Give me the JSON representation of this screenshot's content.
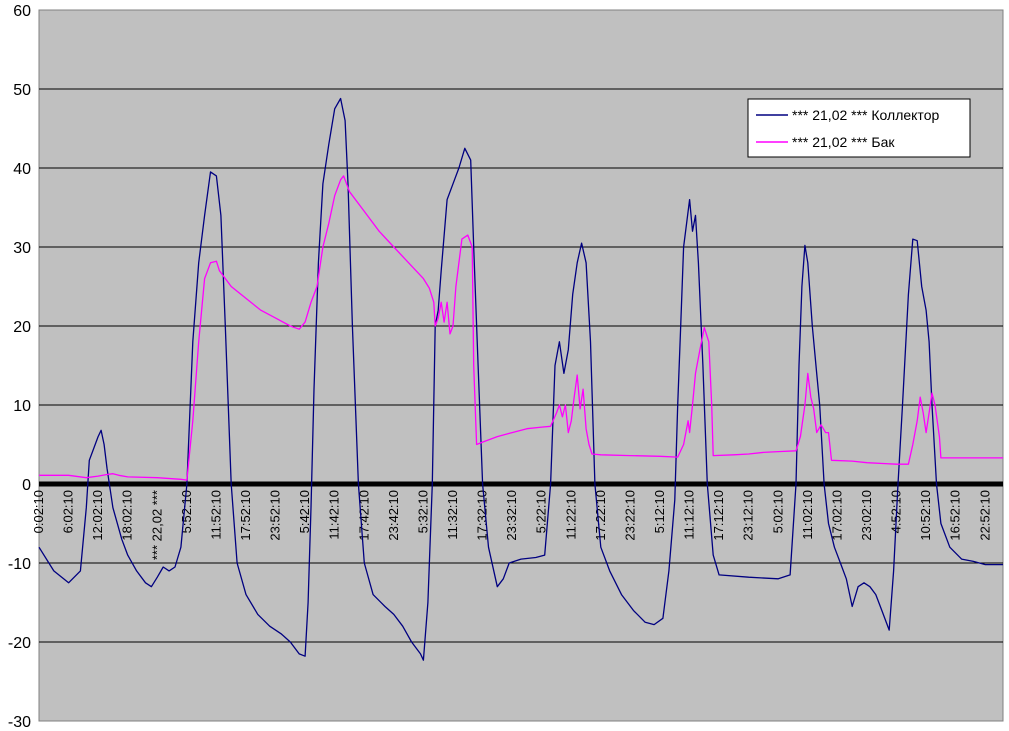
{
  "chart_data": {
    "type": "line",
    "title": "",
    "xlabel": "",
    "ylabel": "",
    "ylim": [
      -30,
      60
    ],
    "yticks": [
      60,
      50,
      40,
      30,
      20,
      10,
      0,
      -10,
      -20,
      -30
    ],
    "grid": "horizontal",
    "legend_position": "top-right",
    "background_color": "#c0c0c0",
    "zero_line_color": "#000000",
    "x_labels": [
      "0:02:10",
      "6:02:10",
      "12:02:10",
      "18:02:10",
      "*** 22,02 ***",
      "5:52:10",
      "11:52:10",
      "17:52:10",
      "23:52:10",
      "5:42:10",
      "11:42:10",
      "17:42:10",
      "23:42:10",
      "5:32:10",
      "11:32:10",
      "17:32:10",
      "23:32:10",
      "5:22:10",
      "11:22:10",
      "17:22:10",
      "23:22:10",
      "5:12:10",
      "11:12:10",
      "17:12:10",
      "23:12:10",
      "5:02:10",
      "11:02:10",
      "17:02:10",
      "23:02:10",
      "4:52:10",
      "10:52:10",
      "16:52:10",
      "22:52:10"
    ],
    "series": [
      {
        "name": "*** 21,02 *** Коллектор",
        "color": "#000080",
        "points": [
          [
            0,
            -8
          ],
          [
            0.5,
            -11
          ],
          [
            1,
            -12.5
          ],
          [
            1.4,
            -11
          ],
          [
            1.6,
            -3
          ],
          [
            1.7,
            3
          ],
          [
            1.85,
            4.5
          ],
          [
            2,
            6
          ],
          [
            2.1,
            6.8
          ],
          [
            2.2,
            5
          ],
          [
            2.3,
            2
          ],
          [
            2.5,
            -3
          ],
          [
            2.8,
            -7
          ],
          [
            3,
            -9
          ],
          [
            3.3,
            -11
          ],
          [
            3.6,
            -12.5
          ],
          [
            3.8,
            -13
          ],
          [
            4,
            -11.8
          ],
          [
            4.2,
            -10.5
          ],
          [
            4.4,
            -11
          ],
          [
            4.6,
            -10.5
          ],
          [
            4.8,
            -8
          ],
          [
            5,
            0
          ],
          [
            5.2,
            18
          ],
          [
            5.4,
            28
          ],
          [
            5.6,
            34
          ],
          [
            5.8,
            39.5
          ],
          [
            6,
            39
          ],
          [
            6.15,
            34
          ],
          [
            6.3,
            20
          ],
          [
            6.5,
            0
          ],
          [
            6.7,
            -10
          ],
          [
            7,
            -14
          ],
          [
            7.4,
            -16.5
          ],
          [
            7.8,
            -18
          ],
          [
            8.2,
            -19
          ],
          [
            8.5,
            -20
          ],
          [
            8.8,
            -21.5
          ],
          [
            9,
            -21.8
          ],
          [
            9.1,
            -15
          ],
          [
            9.2,
            -3
          ],
          [
            9.3,
            12
          ],
          [
            9.45,
            28
          ],
          [
            9.6,
            38
          ],
          [
            9.8,
            43
          ],
          [
            10,
            47.5
          ],
          [
            10.2,
            48.8
          ],
          [
            10.35,
            46
          ],
          [
            10.45,
            38
          ],
          [
            10.6,
            20
          ],
          [
            10.8,
            0
          ],
          [
            11,
            -10
          ],
          [
            11.3,
            -14
          ],
          [
            11.7,
            -15.5
          ],
          [
            12,
            -16.5
          ],
          [
            12.3,
            -18
          ],
          [
            12.6,
            -20
          ],
          [
            12.9,
            -21.5
          ],
          [
            13,
            -22.3
          ],
          [
            13.15,
            -15
          ],
          [
            13.3,
            0
          ],
          [
            13.4,
            20
          ],
          [
            13.5,
            22
          ],
          [
            13.6,
            27
          ],
          [
            13.8,
            36
          ],
          [
            14,
            38
          ],
          [
            14.2,
            40
          ],
          [
            14.4,
            42.5
          ],
          [
            14.6,
            41
          ],
          [
            14.7,
            30
          ],
          [
            14.85,
            15
          ],
          [
            15,
            0
          ],
          [
            15.2,
            -8
          ],
          [
            15.5,
            -13
          ],
          [
            15.7,
            -12
          ],
          [
            15.9,
            -10
          ],
          [
            16.3,
            -9.5
          ],
          [
            16.8,
            -9.3
          ],
          [
            17.1,
            -9
          ],
          [
            17.3,
            0
          ],
          [
            17.45,
            15
          ],
          [
            17.6,
            18
          ],
          [
            17.75,
            14
          ],
          [
            17.9,
            17
          ],
          [
            18.05,
            24
          ],
          [
            18.2,
            28
          ],
          [
            18.35,
            30.5
          ],
          [
            18.5,
            28
          ],
          [
            18.65,
            18
          ],
          [
            18.8,
            0
          ],
          [
            19,
            -8
          ],
          [
            19.3,
            -11
          ],
          [
            19.7,
            -14
          ],
          [
            20.1,
            -16
          ],
          [
            20.5,
            -17.5
          ],
          [
            20.8,
            -17.8
          ],
          [
            21.1,
            -17
          ],
          [
            21.3,
            -11
          ],
          [
            21.5,
            -2
          ],
          [
            21.6,
            10
          ],
          [
            21.7,
            20
          ],
          [
            21.8,
            30
          ],
          [
            21.9,
            33
          ],
          [
            22,
            36
          ],
          [
            22.1,
            32
          ],
          [
            22.2,
            34
          ],
          [
            22.3,
            28
          ],
          [
            22.45,
            15
          ],
          [
            22.6,
            0
          ],
          [
            22.8,
            -9
          ],
          [
            23,
            -11.5
          ],
          [
            24,
            -11.8
          ],
          [
            25,
            -12
          ],
          [
            25.4,
            -11.5
          ],
          [
            25.6,
            0
          ],
          [
            25.7,
            15
          ],
          [
            25.8,
            25
          ],
          [
            25.9,
            30.2
          ],
          [
            26,
            28
          ],
          [
            26.15,
            20
          ],
          [
            26.3,
            14
          ],
          [
            26.4,
            10
          ],
          [
            26.55,
            0
          ],
          [
            26.7,
            -5
          ],
          [
            26.9,
            -8
          ],
          [
            27.1,
            -10
          ],
          [
            27.3,
            -12
          ],
          [
            27.5,
            -15.5
          ],
          [
            27.7,
            -13
          ],
          [
            27.9,
            -12.5
          ],
          [
            28.1,
            -13
          ],
          [
            28.3,
            -14
          ],
          [
            28.5,
            -16
          ],
          [
            28.75,
            -18.5
          ],
          [
            28.9,
            -11
          ],
          [
            29.05,
            0
          ],
          [
            29.2,
            10
          ],
          [
            29.4,
            24
          ],
          [
            29.55,
            31
          ],
          [
            29.7,
            30.8
          ],
          [
            29.85,
            25
          ],
          [
            30,
            22
          ],
          [
            30.1,
            18
          ],
          [
            30.2,
            10
          ],
          [
            30.35,
            0
          ],
          [
            30.5,
            -5
          ],
          [
            30.8,
            -8
          ],
          [
            31.2,
            -9.5
          ],
          [
            31.6,
            -9.8
          ],
          [
            32,
            -10.2
          ],
          [
            32.6,
            -10.2
          ]
        ]
      },
      {
        "name": "*** 21,02 *** Бак",
        "color": "#ff00ff",
        "points": [
          [
            0,
            1.1
          ],
          [
            1,
            1.1
          ],
          [
            1.6,
            0.8
          ],
          [
            2,
            1
          ],
          [
            2.3,
            1.2
          ],
          [
            2.5,
            1.3
          ],
          [
            2.7,
            1.1
          ],
          [
            3,
            0.9
          ],
          [
            4,
            0.8
          ],
          [
            4.8,
            0.6
          ],
          [
            5,
            0.5
          ],
          [
            5.2,
            8
          ],
          [
            5.4,
            18
          ],
          [
            5.6,
            26
          ],
          [
            5.8,
            28
          ],
          [
            6,
            28.2
          ],
          [
            6.1,
            27
          ],
          [
            6.5,
            25
          ],
          [
            7,
            23.5
          ],
          [
            7.5,
            22
          ],
          [
            8,
            21
          ],
          [
            8.5,
            20
          ],
          [
            8.8,
            19.6
          ],
          [
            9,
            20.5
          ],
          [
            9.2,
            23
          ],
          [
            9.4,
            25
          ],
          [
            9.6,
            30
          ],
          [
            9.8,
            33
          ],
          [
            10,
            36.5
          ],
          [
            10.2,
            38.5
          ],
          [
            10.3,
            39
          ],
          [
            10.5,
            37
          ],
          [
            11,
            34.5
          ],
          [
            11.5,
            32
          ],
          [
            12,
            30
          ],
          [
            12.5,
            28
          ],
          [
            13,
            26
          ],
          [
            13.2,
            24.8
          ],
          [
            13.35,
            23
          ],
          [
            13.4,
            20
          ],
          [
            13.5,
            21
          ],
          [
            13.6,
            23
          ],
          [
            13.7,
            20.5
          ],
          [
            13.8,
            23
          ],
          [
            13.9,
            19
          ],
          [
            14,
            20
          ],
          [
            14.1,
            25
          ],
          [
            14.2,
            28
          ],
          [
            14.3,
            31
          ],
          [
            14.5,
            31.5
          ],
          [
            14.65,
            30
          ],
          [
            14.7,
            15
          ],
          [
            14.8,
            5
          ],
          [
            15,
            5.3
          ],
          [
            15.5,
            6
          ],
          [
            16,
            6.5
          ],
          [
            16.5,
            7
          ],
          [
            17,
            7.2
          ],
          [
            17.3,
            7.3
          ],
          [
            17.5,
            9
          ],
          [
            17.6,
            10
          ],
          [
            17.7,
            8.5
          ],
          [
            17.8,
            10
          ],
          [
            17.9,
            6.5
          ],
          [
            18,
            8
          ],
          [
            18.1,
            11
          ],
          [
            18.2,
            13.8
          ],
          [
            18.3,
            9.5
          ],
          [
            18.4,
            12
          ],
          [
            18.5,
            7
          ],
          [
            18.6,
            5
          ],
          [
            18.7,
            3.8
          ],
          [
            19,
            3.7
          ],
          [
            20,
            3.6
          ],
          [
            21,
            3.5
          ],
          [
            21.6,
            3.4
          ],
          [
            21.8,
            5
          ],
          [
            21.95,
            8
          ],
          [
            22,
            6.5
          ],
          [
            22.1,
            10
          ],
          [
            22.2,
            14
          ],
          [
            22.35,
            17
          ],
          [
            22.5,
            19.8
          ],
          [
            22.65,
            18
          ],
          [
            22.75,
            10
          ],
          [
            22.8,
            3.6
          ],
          [
            23.5,
            3.7
          ],
          [
            24,
            3.8
          ],
          [
            24.5,
            4
          ],
          [
            25,
            4.1
          ],
          [
            25.6,
            4.2
          ],
          [
            25.75,
            6
          ],
          [
            25.9,
            10
          ],
          [
            26,
            14
          ],
          [
            26.1,
            11
          ],
          [
            26.2,
            9.5
          ],
          [
            26.3,
            6.5
          ],
          [
            26.45,
            7.5
          ],
          [
            26.6,
            6.5
          ],
          [
            26.7,
            6.5
          ],
          [
            26.8,
            3
          ],
          [
            27.5,
            2.9
          ],
          [
            28,
            2.7
          ],
          [
            29,
            2.5
          ],
          [
            29.4,
            2.5
          ],
          [
            29.55,
            5
          ],
          [
            29.7,
            8
          ],
          [
            29.8,
            11
          ],
          [
            29.9,
            9
          ],
          [
            30,
            6.5
          ],
          [
            30.1,
            9
          ],
          [
            30.2,
            11.5
          ],
          [
            30.3,
            10
          ],
          [
            30.45,
            6
          ],
          [
            30.5,
            3.3
          ],
          [
            31,
            3.3
          ],
          [
            32,
            3.3
          ],
          [
            32.6,
            3.3
          ]
        ]
      }
    ]
  }
}
